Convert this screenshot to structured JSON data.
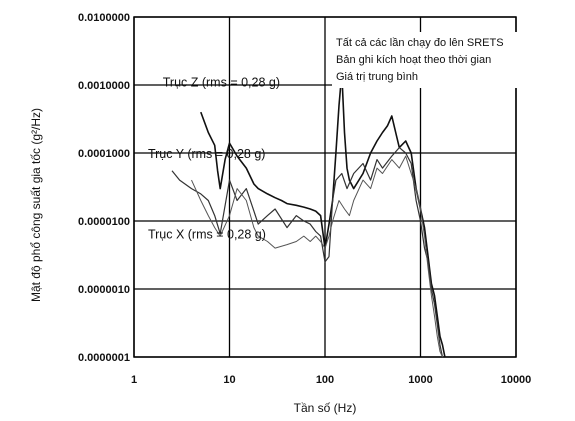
{
  "chart_data": {
    "type": "line",
    "title": "",
    "xlabel": "Tần số (Hz)",
    "ylabel": "Mật độ phổ công suất gia tốc (g²/Hz)",
    "x_scale": "log",
    "y_scale": "log",
    "xlim": [
      1,
      10000
    ],
    "ylim": [
      1e-07,
      0.01
    ],
    "x_ticks": [
      "1",
      "10",
      "100",
      "1000",
      "10000"
    ],
    "y_ticks": [
      "0.0000001",
      "0.0000010",
      "0.0000100",
      "0.0001000",
      "0.0010000",
      "0.0100000"
    ],
    "grid": true,
    "legend_title_lines": [
      "Tất cả các lần chạy đo lên SRETS",
      "Bản ghi kích hoạt theo thời gian",
      "Giá trị trung bình"
    ],
    "legend_placement": "top-right",
    "series_labels": [
      {
        "text": "Trục Z (rms = 0,28 g)",
        "x": 2.0,
        "y": 0.00095
      },
      {
        "text": "Trục Y (rms = 0,28 g)",
        "x": 1.4,
        "y": 8.5e-05
      },
      {
        "text": "Trục X (rms = 0,28 g)",
        "x": 1.4,
        "y": 5.5e-06
      }
    ],
    "series": [
      {
        "name": "Trục Z",
        "color": "#111111",
        "x": [
          5,
          6,
          7,
          7.5,
          8,
          9,
          10,
          12,
          15,
          18,
          20,
          25,
          30,
          35,
          40,
          50,
          60,
          70,
          80,
          90,
          100,
          110,
          120,
          130,
          140,
          150,
          160,
          170,
          180,
          200,
          250,
          300,
          350,
          400,
          450,
          500,
          550,
          600,
          700,
          800,
          900,
          1000,
          1100,
          1200,
          1300,
          1400,
          1500,
          1600,
          1700,
          1800
        ],
        "y": [
          0.0004,
          0.0002,
          0.00013,
          5.5e-05,
          3e-05,
          8e-05,
          0.00014,
          9e-05,
          6e-05,
          3.5e-05,
          3e-05,
          2.5e-05,
          2.2e-05,
          2e-05,
          1.8e-05,
          1.7e-05,
          1.6e-05,
          1.5e-05,
          1.4e-05,
          1.2e-05,
          4e-06,
          9e-06,
          2e-05,
          0.0001,
          0.0005,
          0.0015,
          0.0002,
          6e-05,
          4e-05,
          3e-05,
          5e-05,
          0.0001,
          0.00015,
          0.0002,
          0.00025,
          0.00035,
          0.0002,
          0.00012,
          0.00015,
          0.0001,
          3e-05,
          1.5e-05,
          8e-06,
          3e-06,
          1.2e-06,
          8e-07,
          4e-07,
          2e-07,
          1.5e-07,
          1e-07
        ]
      },
      {
        "name": "Trục Y",
        "color": "#333333",
        "x": [
          2.5,
          3,
          4,
          5,
          6,
          7,
          8,
          10,
          12,
          15,
          18,
          20,
          25,
          30,
          40,
          50,
          60,
          70,
          80,
          90,
          100,
          110,
          120,
          130,
          150,
          170,
          200,
          250,
          300,
          350,
          400,
          500,
          600,
          700,
          800,
          900,
          1000,
          1100,
          1200,
          1300,
          1400,
          1500,
          1600,
          1700
        ],
        "y": [
          5.5e-05,
          4e-05,
          3e-05,
          2.5e-05,
          2e-05,
          1.2e-05,
          6.5e-06,
          4e-05,
          2e-05,
          3e-05,
          1.4e-05,
          9e-06,
          1.2e-05,
          1.5e-05,
          8e-06,
          1.2e-05,
          1e-05,
          9e-06,
          7e-06,
          6e-06,
          2.5e-06,
          3e-06,
          2e-05,
          4e-05,
          5e-05,
          3e-05,
          5e-05,
          7e-05,
          4e-05,
          8e-05,
          6e-05,
          9e-05,
          0.00012,
          0.0001,
          7e-05,
          2e-05,
          1e-05,
          4e-06,
          2.5e-06,
          1e-06,
          6e-07,
          3e-07,
          1.5e-07,
          1e-07
        ]
      },
      {
        "name": "Trục X",
        "color": "#555555",
        "x": [
          4,
          5,
          6,
          7,
          8,
          10,
          12,
          15,
          18,
          20,
          25,
          30,
          40,
          50,
          60,
          70,
          80,
          90,
          100,
          110,
          120,
          140,
          160,
          180,
          200,
          250,
          300,
          350,
          400,
          500,
          600,
          700,
          800,
          900,
          1000,
          1100,
          1200,
          1300,
          1400,
          1500,
          1600,
          1700
        ],
        "y": [
          4e-05,
          2e-05,
          1.2e-05,
          8e-06,
          6e-06,
          1.2e-05,
          3e-05,
          2e-05,
          8e-06,
          6e-06,
          5e-06,
          4e-06,
          4.5e-06,
          5e-06,
          6e-06,
          5e-06,
          6e-06,
          5e-06,
          4e-06,
          6e-06,
          1e-05,
          2e-05,
          1.5e-05,
          1.2e-05,
          2e-05,
          4e-05,
          3e-05,
          6e-05,
          5e-05,
          8e-05,
          6e-05,
          9e-05,
          5e-05,
          3e-05,
          1.5e-05,
          6e-06,
          2e-06,
          8e-07,
          4e-07,
          2e-07,
          1.2e-07,
          1e-07
        ]
      }
    ]
  }
}
